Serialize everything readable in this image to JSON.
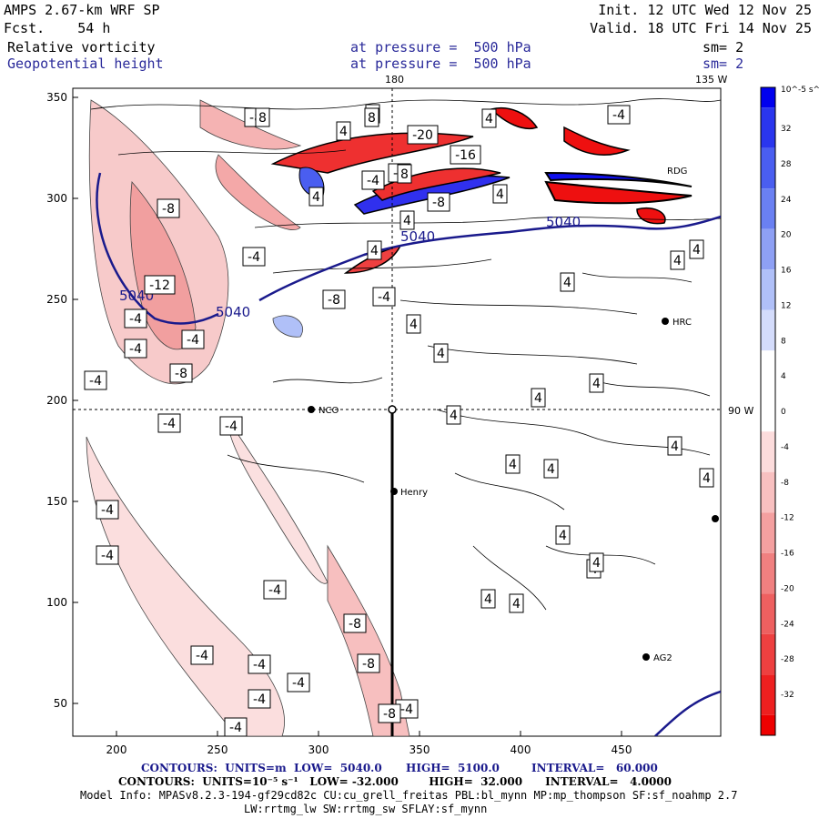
{
  "header": {
    "model": "AMPS 2.67-km WRF SP",
    "forecast": "Fcst.    54 h",
    "init": "Init. 12 UTC Wed 12 Nov 25",
    "valid": "Valid. 18 UTC Fri 14 Nov 25",
    "field1": "Relative vorticity",
    "field2": "Geopotential height",
    "pressure1": "at pressure =  500 hPa",
    "pressure2": "at pressure =  500 hPa",
    "sm1": "sm= 2",
    "sm2": "sm= 2"
  },
  "map": {
    "lon_top_label": "180",
    "lon_135_label": "135 W",
    "lon_90_label": "90 W",
    "x_ticks": [
      "200",
      "250",
      "300",
      "350",
      "400",
      "450"
    ],
    "y_ticks": [
      "350",
      "300",
      "250",
      "200",
      "150",
      "100",
      "50"
    ],
    "stations": [
      "NCO",
      "Henry",
      "HRC",
      "AG2",
      "RDG"
    ],
    "height_labels": [
      "5040",
      "5040",
      "5040",
      "5040"
    ],
    "vort_labels": [
      "-4",
      "-8",
      "-12",
      "-4",
      "-8",
      "-4",
      "-4",
      "-4",
      "-4",
      "-4",
      "-4",
      "-4",
      "-4",
      "-4",
      "-8",
      "-4",
      "-4",
      "-4",
      "-8",
      "-4",
      "-8",
      "-8",
      "-4",
      "-4",
      "-20",
      "-16",
      "-4",
      "-8",
      "-8",
      "-8",
      "-4",
      "4",
      "4",
      "4",
      "4",
      "4",
      "4",
      "4",
      "4",
      "4",
      "4",
      "4",
      "4",
      "4",
      "4",
      "4",
      "4",
      "4",
      "4",
      "4",
      "4",
      "4",
      "4",
      "4",
      "4",
      "8",
      "8",
      "8"
    ]
  },
  "colorbar": {
    "unit": "10^-5 s^-1",
    "ticks": [
      "32",
      "28",
      "24",
      "20",
      "16",
      "12",
      "8",
      "4",
      "0",
      "-4",
      "-8",
      "-12",
      "-16",
      "-20",
      "-24",
      "-28",
      "-32"
    ],
    "colors": [
      "#0000ee",
      "#2a36ee",
      "#4a5ef0",
      "#6a80f2",
      "#8ea0f4",
      "#b0c0f8",
      "#d4dcfb",
      "#ffffff",
      "#ffffff",
      "#fcdcdc",
      "#f8c0c0",
      "#f4a0a0",
      "#f08080",
      "#ee6060",
      "#ee4040",
      "#ee2020",
      "#ee0000"
    ]
  },
  "footer": {
    "line1_contours": "CONTOURS:  UNITS=m  LOW=  5040.0",
    "line1_high": "HIGH=  5100.0",
    "line1_interval": "INTERVAL=   60.000",
    "line2": "CONTOURS:  UNITS=10⁻⁵ s⁻¹   LOW= -32.000        HIGH=  32.000      INTERVAL=   4.0000",
    "line3": "Model Info: MPASv8.2.3-194-gf29cd82c CU:cu_grell_freitas PBL:bl_mynn MP:mp_thompson SF:sf_noahmp 2.7",
    "line4": "LW:rrtmg_lw SW:rrtmg_sw SFLAY:sf_mynn"
  },
  "colors": {
    "red": "#ee0000",
    "blue": "#0000ee",
    "line_blue": "#1a1a8c"
  }
}
